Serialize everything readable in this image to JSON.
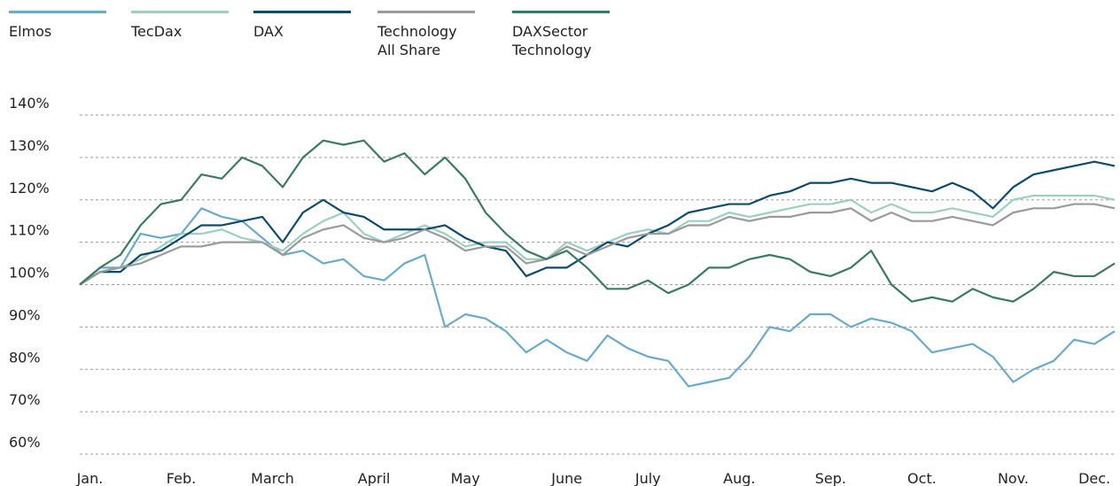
{
  "chart_data": {
    "type": "line",
    "series": [
      {
        "name": "Elmos",
        "color": "#6aaac8",
        "values": [
          100,
          104,
          104,
          112,
          111,
          112,
          118,
          116,
          115,
          111,
          107,
          108,
          105,
          106,
          102,
          101,
          105,
          107,
          90,
          93,
          92,
          89,
          84,
          87,
          84,
          82,
          88,
          85,
          83,
          82,
          76,
          77,
          78,
          83,
          90,
          89,
          93,
          93,
          90,
          92,
          91,
          89,
          84,
          85,
          86,
          83,
          77,
          80,
          82,
          87,
          86,
          89
        ]
      },
      {
        "name": "TecDax",
        "color": "#9ccfbe",
        "values": [
          100,
          103,
          104,
          106,
          109,
          112,
          112,
          113,
          111,
          110,
          108,
          112,
          115,
          117,
          112,
          110,
          112,
          114,
          112,
          109,
          110,
          110,
          106,
          106,
          110,
          108,
          110,
          112,
          113,
          112,
          115,
          115,
          117,
          116,
          117,
          118,
          119,
          119,
          120,
          117,
          119,
          117,
          117,
          118,
          117,
          116,
          120,
          121,
          121,
          121,
          121,
          120
        ]
      },
      {
        "name": "DAX",
        "color": "#0d4a6b",
        "values": [
          100,
          103,
          103,
          107,
          108,
          111,
          114,
          114,
          115,
          116,
          110,
          117,
          120,
          117,
          116,
          113,
          113,
          113,
          114,
          111,
          109,
          108,
          102,
          104,
          104,
          107,
          110,
          109,
          112,
          114,
          117,
          118,
          119,
          119,
          121,
          122,
          124,
          124,
          125,
          124,
          124,
          123,
          122,
          124,
          122,
          118,
          123,
          126,
          127,
          128,
          129,
          128
        ]
      },
      {
        "name": "Technology All Share",
        "color": "#9a9a9a",
        "values": [
          100,
          103,
          104,
          105,
          107,
          109,
          109,
          110,
          110,
          110,
          107,
          111,
          113,
          114,
          111,
          110,
          111,
          113,
          111,
          108,
          109,
          109,
          105,
          106,
          109,
          107,
          109,
          111,
          112,
          112,
          114,
          114,
          116,
          115,
          116,
          116,
          117,
          117,
          118,
          115,
          117,
          115,
          115,
          116,
          115,
          114,
          117,
          118,
          118,
          119,
          119,
          118
        ]
      },
      {
        "name": "DAXSector Technology",
        "color": "#3c7a60",
        "values": [
          100,
          104,
          107,
          114,
          119,
          120,
          126,
          125,
          130,
          128,
          123,
          130,
          134,
          133,
          134,
          129,
          131,
          126,
          130,
          125,
          117,
          112,
          108,
          106,
          108,
          104,
          99,
          99,
          101,
          98,
          100,
          104,
          104,
          106,
          107,
          106,
          103,
          102,
          104,
          108,
          100,
          96,
          97,
          96,
          99,
          97,
          96,
          99,
          103,
          102,
          102,
          105
        ]
      }
    ],
    "xlim": [
      0,
      51
    ],
    "xticks": [
      {
        "value": 0.5,
        "label": "Jan."
      },
      {
        "value": 5,
        "label": "Feb."
      },
      {
        "value": 9.5,
        "label": "March"
      },
      {
        "value": 14.5,
        "label": "April"
      },
      {
        "value": 19,
        "label": "May"
      },
      {
        "value": 24,
        "label": "June"
      },
      {
        "value": 28,
        "label": "July"
      },
      {
        "value": 32.5,
        "label": "Aug."
      },
      {
        "value": 37,
        "label": "Sep."
      },
      {
        "value": 41.5,
        "label": "Oct."
      },
      {
        "value": 46,
        "label": "Nov."
      },
      {
        "value": 50,
        "label": "Dec."
      }
    ],
    "ylim": [
      60,
      140
    ],
    "yticks": [
      {
        "value": 60,
        "label": "60%"
      },
      {
        "value": 70,
        "label": "70%"
      },
      {
        "value": 80,
        "label": "80%"
      },
      {
        "value": 90,
        "label": "90%"
      },
      {
        "value": 100,
        "label": "100%"
      },
      {
        "value": 110,
        "label": "110%"
      },
      {
        "value": 120,
        "label": "120%"
      },
      {
        "value": 130,
        "label": "130%"
      },
      {
        "value": 140,
        "label": "140%"
      }
    ],
    "grid": true
  }
}
